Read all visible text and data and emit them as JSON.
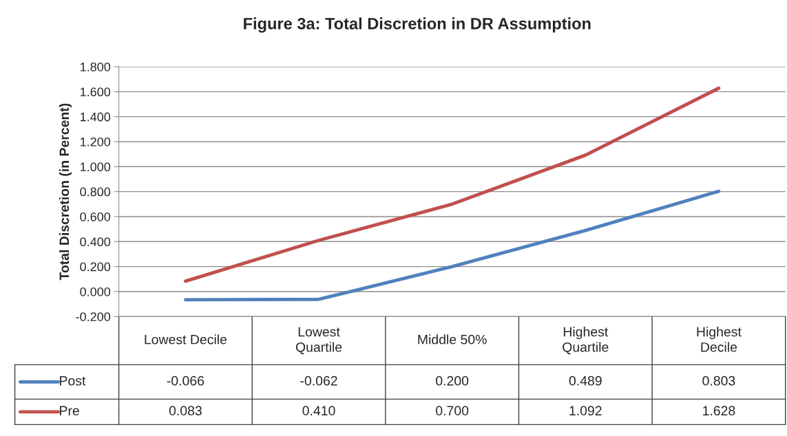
{
  "chart_data": {
    "type": "line",
    "title": "Figure 3a: Total Discretion in DR Assumption",
    "ylabel": "Total Discretion (in Percent)",
    "categories": [
      "Lowest Decile",
      "Lowest Quartile",
      "Middle 50%",
      "Highest Quartile",
      "Highest Decile"
    ],
    "series": [
      {
        "name": "Post",
        "color": "#4f81bd",
        "values": [
          -0.066,
          -0.062,
          0.2,
          0.489,
          0.803
        ],
        "value_labels": [
          "-0.066",
          "-0.062",
          "0.200",
          "0.489",
          "0.803"
        ]
      },
      {
        "name": "Pre",
        "color": "#c0504d",
        "values": [
          0.083,
          0.41,
          0.7,
          1.092,
          1.628
        ],
        "value_labels": [
          "0.083",
          "0.410",
          "0.700",
          "1.092",
          "1.628"
        ]
      }
    ],
    "ylim": [
      -0.2,
      1.8
    ],
    "yticks": [
      {
        "value": -0.2,
        "label": "-0.200"
      },
      {
        "value": 0,
        "label": "0.000"
      },
      {
        "value": 0.2,
        "label": "0.200"
      },
      {
        "value": 0.4,
        "label": "0.400"
      },
      {
        "value": 0.6,
        "label": "0.600"
      },
      {
        "value": 0.8,
        "label": "0.800"
      },
      {
        "value": 1.0,
        "label": "1.000"
      },
      {
        "value": 1.2,
        "label": "1.200"
      },
      {
        "value": 1.4,
        "label": "1.400"
      },
      {
        "value": 1.6,
        "label": "1.600"
      },
      {
        "value": 1.8,
        "label": "1.800"
      }
    ],
    "grid": "y",
    "legend": "bottom",
    "marker": "none",
    "line_style": "solid"
  }
}
